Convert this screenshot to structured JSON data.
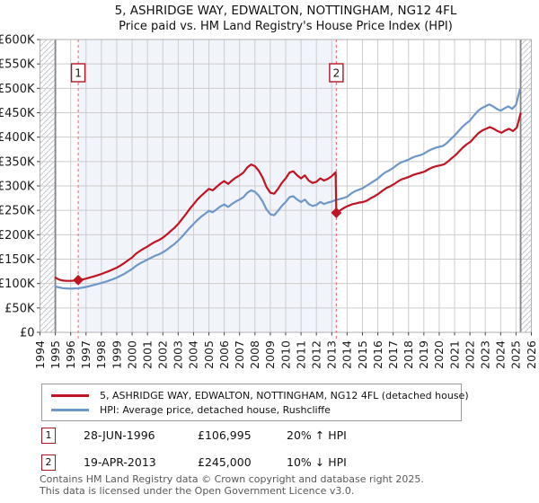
{
  "chart_data": {
    "type": "line",
    "title": "5, ASHRIDGE WAY, EDWALTON, NOTTINGHAM, NG12 4FL",
    "subtitle": "Price paid vs. HM Land Registry's House Price Index (HPI)",
    "units": "GBP thousands",
    "grid": true,
    "legend_position": "bottom",
    "x_range": [
      1994,
      2026
    ],
    "y_range_k": [
      0,
      600
    ],
    "y_tick_step_k": 50,
    "y_tick_labels": [
      "£0",
      "£50K",
      "£100K",
      "£150K",
      "£200K",
      "£250K",
      "£300K",
      "£350K",
      "£400K",
      "£450K",
      "£500K",
      "£550K",
      "£600K"
    ],
    "x_ticks": [
      1994,
      1995,
      1996,
      1997,
      1998,
      1999,
      2000,
      2001,
      2002,
      2003,
      2004,
      2005,
      2006,
      2007,
      2008,
      2009,
      2010,
      2011,
      2012,
      2013,
      2014,
      2015,
      2016,
      2017,
      2018,
      2019,
      2020,
      2021,
      2022,
      2023,
      2024,
      2025,
      2026
    ],
    "data_start_x": 1995.0,
    "data_end_x": 2025.3,
    "shaded_region_x": [
      1996.49,
      2013.3
    ],
    "colors": {
      "property": "#c11423",
      "hpi": "#6e97c9",
      "event_line": "#f07a7a",
      "shade": "#f2f4fb",
      "grid": "#cccccc",
      "border": "#b0b0b0",
      "boundary": "#828282",
      "hatch": "#c2c6ce",
      "event_box_border": "#b01525",
      "tick": "#444444",
      "label": "#1a1a1a"
    },
    "series": [
      {
        "name": "5, ASHRIDGE WAY, EDWALTON, NOTTINGHAM, NG12 4FL (detached house)",
        "color": "#c11423",
        "segments": [
          {
            "x0": 1995.0,
            "dx": 0.25,
            "values_k": [
              112,
              108,
              106,
              105.5,
              105.5,
              106,
              107,
              108,
              110,
              112.5,
              114.5,
              117,
              119.5,
              122.5,
              125.5,
              129,
              132.5,
              137,
              142,
              148,
              153.5,
              161,
              166.5,
              171.5,
              176,
              181,
              185.5,
              189,
              194,
              200,
              207,
              214,
              222,
              232,
              242,
              253,
              262,
              272,
              280,
              287,
              294,
              291,
              298,
              305,
              310,
              304,
              311,
              317,
              321.5,
              327.5,
              338,
              344,
              340.5,
              331,
              317,
              298,
              286,
              284,
              294,
              306,
              315.5,
              327.5,
              330,
              321.5,
              315.5,
              321.5,
              311,
              306,
              308.5,
              315.5,
              311,
              314.5,
              320,
              328
            ]
          },
          {
            "x0": 2013.3,
            "dx": 0.25,
            "values_k": [
              245,
              250,
              255,
              259,
              262,
              264,
              266,
              267,
              270,
              275,
              279,
              284,
              290,
              295.5,
              299,
              303.5,
              309,
              313.5,
              316,
              319,
              322.5,
              325,
              327,
              329.5,
              334,
              338,
              340.5,
              342,
              344,
              349.5,
              356.5,
              363,
              371,
              379,
              385.5,
              391,
              400,
              408,
              413.5,
              417,
              420.5,
              417,
              412.5,
              409,
              413.5,
              417,
              412.5,
              419.5,
              448.5
            ]
          }
        ]
      },
      {
        "name": "HPI: Average price, detached house, Rushcliffe",
        "color": "#6e97c9",
        "segments": [
          {
            "x0": 1995.0,
            "dx": 0.25,
            "values_k": [
              94,
              92,
              90.5,
              90,
              89.5,
              90,
              90.5,
              91.5,
              93,
              95,
              97,
              99,
              101,
              103.5,
              106,
              109,
              112,
              116,
              120,
              125,
              130,
              136,
              141,
              145,
              149,
              153,
              157,
              160,
              164,
              169,
              175,
              181,
              188,
              196,
              205,
              214,
              222,
              230,
              237,
              243,
              249,
              246,
              252,
              258,
              262,
              257,
              263,
              268,
              272,
              277,
              286,
              291,
              288,
              280,
              268,
              252,
              242,
              240,
              249,
              259,
              267,
              277,
              279,
              272,
              267,
              272,
              263,
              259,
              261,
              267,
              263,
              266,
              268,
              271,
              273,
              275,
              278,
              284,
              289,
              292,
              295,
              300,
              305,
              310,
              315,
              322,
              328,
              332,
              337,
              343,
              348,
              351,
              354,
              358,
              361,
              363,
              366,
              371,
              375,
              378,
              380,
              382,
              388,
              396,
              403,
              412,
              421,
              428,
              434,
              444,
              453,
              459,
              463,
              467,
              463,
              458,
              454,
              459,
              463,
              458,
              466,
              498
            ]
          }
        ]
      }
    ],
    "events": [
      {
        "num": "1",
        "x": 1996.49,
        "value_k": 107,
        "marker": "diamond",
        "date": "28-JUN-1996",
        "price": "£106,995",
        "vs_hpi": "20% ↑ HPI"
      },
      {
        "num": "2",
        "x": 2013.3,
        "value_k": 245,
        "marker": "diamond",
        "date": "19-APR-2013",
        "price": "£245,000",
        "vs_hpi": "10% ↓ HPI"
      }
    ]
  },
  "footer": {
    "line1": "Contains HM Land Registry data © Crown copyright and database right 2025.",
    "line2": "This data is licensed under the Open Government Licence v3.0."
  }
}
